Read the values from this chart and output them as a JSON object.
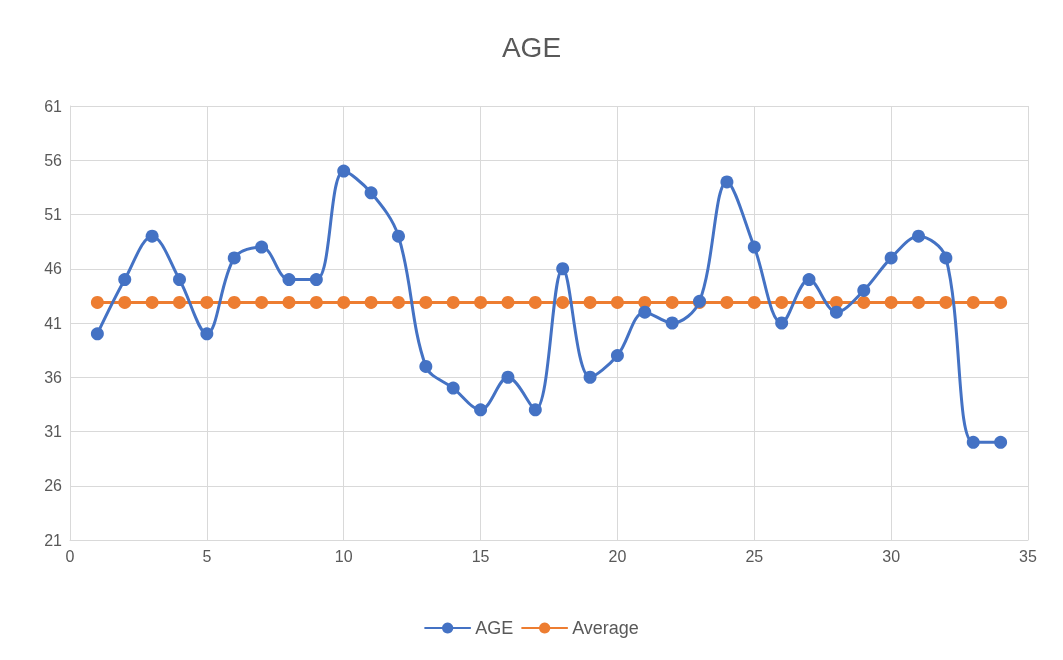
{
  "chart_data": {
    "type": "line",
    "title": "AGE",
    "x": [
      1,
      2,
      3,
      4,
      5,
      6,
      7,
      8,
      9,
      10,
      11,
      12,
      13,
      14,
      15,
      16,
      17,
      18,
      19,
      20,
      21,
      22,
      23,
      24,
      25,
      26,
      27,
      28,
      29,
      30,
      31,
      32,
      33,
      34
    ],
    "series": [
      {
        "name": "AGE",
        "color": "#4472c4",
        "values": [
          40,
          45,
          49,
          45,
          40,
          47,
          48,
          45,
          45,
          55,
          53,
          49,
          37,
          35,
          33,
          36,
          33,
          46,
          36,
          38,
          42,
          41,
          43,
          54,
          48,
          41,
          45,
          42,
          44,
          47,
          49,
          47,
          30,
          30
        ]
      },
      {
        "name": "Average",
        "color": "#ed7d31",
        "values": [
          42.9,
          42.9,
          42.9,
          42.9,
          42.9,
          42.9,
          42.9,
          42.9,
          42.9,
          42.9,
          42.9,
          42.9,
          42.9,
          42.9,
          42.9,
          42.9,
          42.9,
          42.9,
          42.9,
          42.9,
          42.9,
          42.9,
          42.9,
          42.9,
          42.9,
          42.9,
          42.9,
          42.9,
          42.9,
          42.9,
          42.9,
          42.9,
          42.9,
          42.9
        ]
      }
    ],
    "xlim": [
      0,
      35
    ],
    "xticks": [
      0,
      5,
      10,
      15,
      20,
      25,
      30,
      35
    ],
    "ylim": [
      21,
      61
    ],
    "yticks": [
      21,
      26,
      31,
      36,
      41,
      46,
      51,
      56,
      61
    ],
    "grid": true,
    "legend": "bottom",
    "marker": "circle",
    "line_style": "solid"
  }
}
